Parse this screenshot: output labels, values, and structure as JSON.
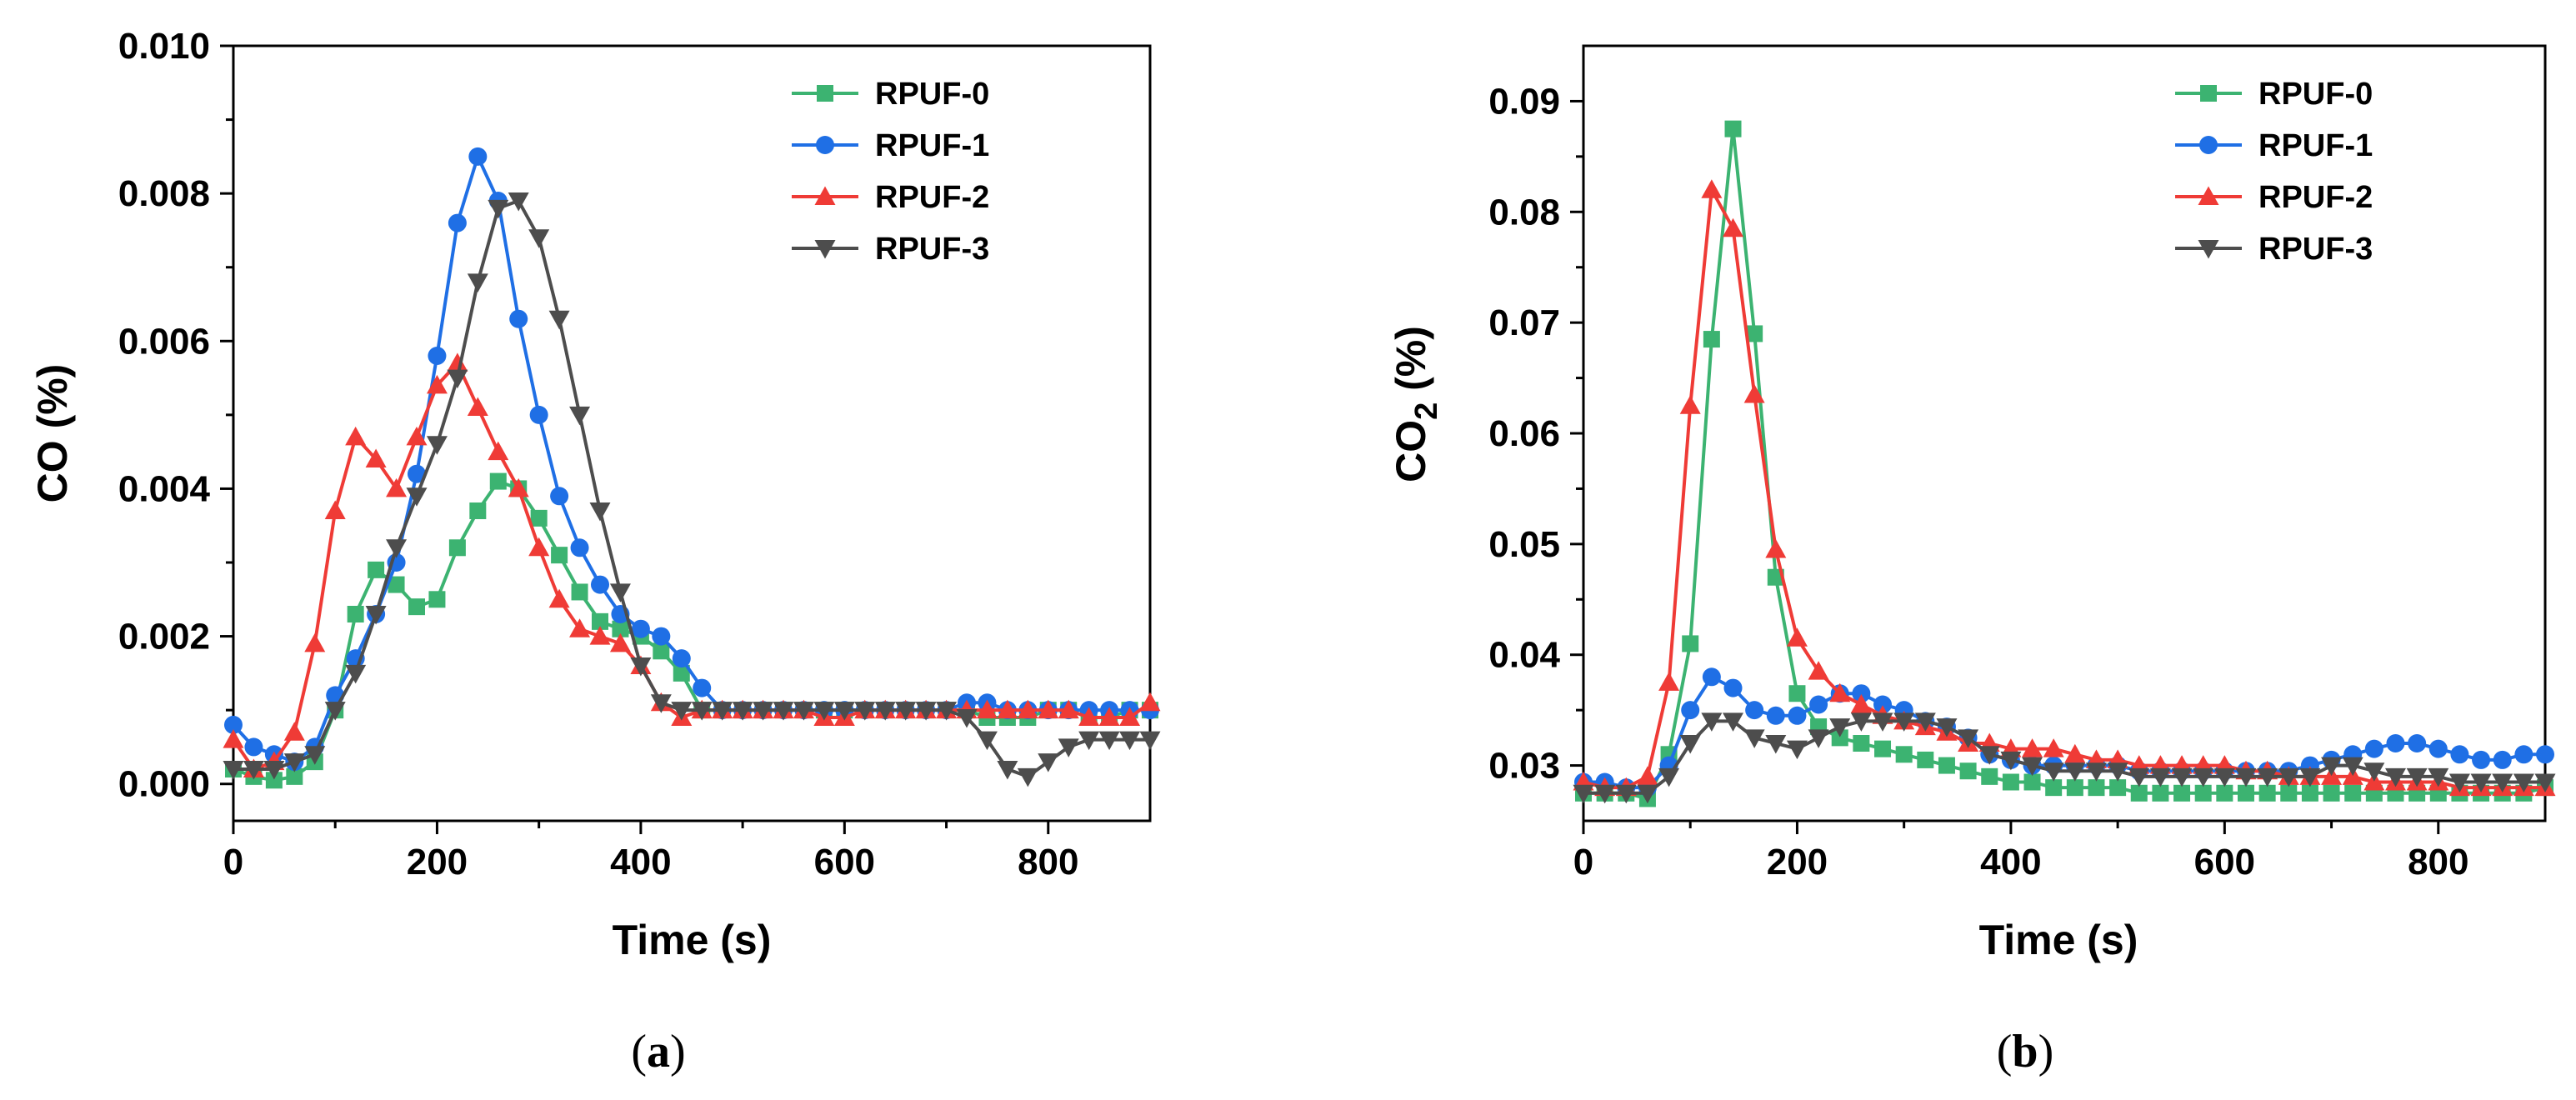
{
  "chart_data": [
    {
      "type": "line",
      "panel_label": "a",
      "xlabel": "Time (s)",
      "ylabel": "CO (%)",
      "ylabel_sub": "",
      "ylabel_tail": "",
      "xlim": [
        0,
        900
      ],
      "ylim": [
        -0.0005,
        0.01
      ],
      "xticks": [
        0,
        200,
        400,
        600,
        800
      ],
      "yticks": [
        0.0,
        0.002,
        0.004,
        0.006,
        0.008,
        0.01
      ],
      "ytick_labels": [
        "0.000",
        "0.002",
        "0.004",
        "0.006",
        "0.008",
        "0.010"
      ],
      "xtick_labels": [
        "0",
        "200",
        "400",
        "600",
        "800"
      ],
      "legend_position": "top-right",
      "series": [
        {
          "name": "RPUF-0",
          "color": "#3cb371",
          "marker": "square",
          "x": [
            0,
            20,
            40,
            60,
            80,
            100,
            120,
            140,
            160,
            180,
            200,
            220,
            240,
            260,
            280,
            300,
            320,
            340,
            360,
            380,
            400,
            420,
            440,
            460,
            480,
            500,
            520,
            540,
            560,
            580,
            600,
            620,
            640,
            660,
            680,
            700,
            720,
            740,
            760,
            780,
            800,
            820,
            840,
            860,
            880,
            900
          ],
          "y": [
            0.0002,
            0.0001,
            5e-05,
            0.0001,
            0.0003,
            0.001,
            0.0023,
            0.0029,
            0.0027,
            0.0024,
            0.0025,
            0.0032,
            0.0037,
            0.0041,
            0.004,
            0.0036,
            0.0031,
            0.0026,
            0.0022,
            0.0021,
            0.002,
            0.0018,
            0.0015,
            0.001,
            0.001,
            0.001,
            0.001,
            0.001,
            0.001,
            0.001,
            0.001,
            0.001,
            0.001,
            0.001,
            0.001,
            0.001,
            0.001,
            0.0009,
            0.0009,
            0.0009,
            0.001,
            0.001,
            0.0009,
            0.0009,
            0.001,
            0.001
          ]
        },
        {
          "name": "RPUF-1",
          "color": "#1f6fe5",
          "marker": "circle",
          "x": [
            0,
            20,
            40,
            60,
            80,
            100,
            120,
            140,
            160,
            180,
            200,
            220,
            240,
            260,
            280,
            300,
            320,
            340,
            360,
            380,
            400,
            420,
            440,
            460,
            480,
            500,
            520,
            540,
            560,
            580,
            600,
            620,
            640,
            660,
            680,
            700,
            720,
            740,
            760,
            780,
            800,
            820,
            840,
            860,
            880,
            900
          ],
          "y": [
            0.0008,
            0.0005,
            0.0004,
            0.0003,
            0.0005,
            0.0012,
            0.0017,
            0.0023,
            0.003,
            0.0042,
            0.0058,
            0.0076,
            0.0085,
            0.0079,
            0.0063,
            0.005,
            0.0039,
            0.0032,
            0.0027,
            0.0023,
            0.0021,
            0.002,
            0.0017,
            0.0013,
            0.001,
            0.001,
            0.001,
            0.001,
            0.001,
            0.001,
            0.001,
            0.001,
            0.001,
            0.001,
            0.001,
            0.001,
            0.0011,
            0.0011,
            0.001,
            0.001,
            0.001,
            0.001,
            0.001,
            0.001,
            0.001,
            0.001
          ]
        },
        {
          "name": "RPUF-2",
          "color": "#ef3b36",
          "marker": "triangle-up",
          "x": [
            0,
            20,
            40,
            60,
            80,
            100,
            120,
            140,
            160,
            180,
            200,
            220,
            240,
            260,
            280,
            300,
            320,
            340,
            360,
            380,
            400,
            420,
            440,
            460,
            480,
            500,
            520,
            540,
            560,
            580,
            600,
            620,
            640,
            660,
            680,
            700,
            720,
            740,
            760,
            780,
            800,
            820,
            840,
            860,
            880,
            900
          ],
          "y": [
            0.0006,
            0.0002,
            0.0003,
            0.0007,
            0.0019,
            0.0037,
            0.0047,
            0.0044,
            0.004,
            0.0047,
            0.0054,
            0.0057,
            0.0051,
            0.0045,
            0.004,
            0.0032,
            0.0025,
            0.0021,
            0.002,
            0.0019,
            0.0016,
            0.0011,
            0.0009,
            0.001,
            0.001,
            0.001,
            0.001,
            0.001,
            0.001,
            0.0009,
            0.0009,
            0.001,
            0.001,
            0.001,
            0.001,
            0.001,
            0.001,
            0.001,
            0.001,
            0.001,
            0.001,
            0.001,
            0.0009,
            0.0009,
            0.0009,
            0.0011
          ]
        },
        {
          "name": "RPUF-3",
          "color": "#4d4d4d",
          "marker": "triangle-down",
          "x": [
            0,
            20,
            40,
            60,
            80,
            100,
            120,
            140,
            160,
            180,
            200,
            220,
            240,
            260,
            280,
            300,
            320,
            340,
            360,
            380,
            400,
            420,
            440,
            460,
            480,
            500,
            520,
            540,
            560,
            580,
            600,
            620,
            640,
            660,
            680,
            700,
            720,
            740,
            760,
            780,
            800,
            820,
            840,
            860,
            880,
            900
          ],
          "y": [
            0.0002,
            0.0002,
            0.0002,
            0.0003,
            0.0004,
            0.001,
            0.0015,
            0.0023,
            0.0032,
            0.0039,
            0.0046,
            0.0055,
            0.0068,
            0.0078,
            0.0079,
            0.0074,
            0.0063,
            0.005,
            0.0037,
            0.0026,
            0.0016,
            0.0011,
            0.001,
            0.001,
            0.001,
            0.001,
            0.001,
            0.001,
            0.001,
            0.001,
            0.001,
            0.001,
            0.001,
            0.001,
            0.001,
            0.001,
            0.0009,
            0.0006,
            0.0002,
            0.0001,
            0.0003,
            0.0005,
            0.0006,
            0.0006,
            0.0006,
            0.0006
          ]
        }
      ]
    },
    {
      "type": "line",
      "panel_label": "b",
      "xlabel": "Time (s)",
      "ylabel": "CO",
      "ylabel_sub": "2",
      "ylabel_tail": " (%)",
      "xlim": [
        0,
        900
      ],
      "ylim": [
        0.025,
        0.095
      ],
      "xticks": [
        0,
        200,
        400,
        600,
        800
      ],
      "yticks": [
        0.03,
        0.04,
        0.05,
        0.06,
        0.07,
        0.08,
        0.09
      ],
      "ytick_labels": [
        "0.03",
        "0.04",
        "0.05",
        "0.06",
        "0.07",
        "0.08",
        "0.09"
      ],
      "xtick_labels": [
        "0",
        "200",
        "400",
        "600",
        "800"
      ],
      "legend_position": "top-right",
      "series": [
        {
          "name": "RPUF-0",
          "color": "#3cb371",
          "marker": "square",
          "x": [
            0,
            20,
            40,
            60,
            80,
            100,
            120,
            140,
            160,
            180,
            200,
            220,
            240,
            260,
            280,
            300,
            320,
            340,
            360,
            380,
            400,
            420,
            440,
            460,
            480,
            500,
            520,
            540,
            560,
            580,
            600,
            620,
            640,
            660,
            680,
            700,
            720,
            740,
            760,
            780,
            800,
            820,
            840,
            860,
            880,
            900
          ],
          "y": [
            0.0275,
            0.0275,
            0.0275,
            0.027,
            0.031,
            0.041,
            0.0685,
            0.0875,
            0.069,
            0.047,
            0.0365,
            0.0335,
            0.0325,
            0.032,
            0.0315,
            0.031,
            0.0305,
            0.03,
            0.0295,
            0.029,
            0.0285,
            0.0285,
            0.028,
            0.028,
            0.028,
            0.028,
            0.0275,
            0.0275,
            0.0275,
            0.0275,
            0.0275,
            0.0275,
            0.0275,
            0.0275,
            0.0275,
            0.0275,
            0.0275,
            0.0275,
            0.0275,
            0.0275,
            0.0275,
            0.0275,
            0.0275,
            0.0275,
            0.0275,
            0.028
          ]
        },
        {
          "name": "RPUF-1",
          "color": "#1f6fe5",
          "marker": "circle",
          "x": [
            0,
            20,
            40,
            60,
            80,
            100,
            120,
            140,
            160,
            180,
            200,
            220,
            240,
            260,
            280,
            300,
            320,
            340,
            360,
            380,
            400,
            420,
            440,
            460,
            480,
            500,
            520,
            540,
            560,
            580,
            600,
            620,
            640,
            660,
            680,
            700,
            720,
            740,
            760,
            780,
            800,
            820,
            840,
            860,
            880,
            900
          ],
          "y": [
            0.0285,
            0.0285,
            0.028,
            0.028,
            0.03,
            0.035,
            0.038,
            0.037,
            0.035,
            0.0345,
            0.0345,
            0.0355,
            0.0365,
            0.0365,
            0.0355,
            0.035,
            0.034,
            0.0335,
            0.0325,
            0.031,
            0.0305,
            0.03,
            0.03,
            0.03,
            0.03,
            0.03,
            0.0295,
            0.0295,
            0.0295,
            0.0295,
            0.0295,
            0.0295,
            0.0295,
            0.0295,
            0.03,
            0.0305,
            0.031,
            0.0315,
            0.032,
            0.032,
            0.0315,
            0.031,
            0.0305,
            0.0305,
            0.031,
            0.031
          ]
        },
        {
          "name": "RPUF-2",
          "color": "#ef3b36",
          "marker": "triangle-up",
          "x": [
            0,
            20,
            40,
            60,
            80,
            100,
            120,
            140,
            160,
            180,
            200,
            220,
            240,
            260,
            280,
            300,
            320,
            340,
            360,
            380,
            400,
            420,
            440,
            460,
            480,
            500,
            520,
            540,
            560,
            580,
            600,
            620,
            640,
            660,
            680,
            700,
            720,
            740,
            760,
            780,
            800,
            820,
            840,
            860,
            880,
            900
          ],
          "y": [
            0.0285,
            0.028,
            0.028,
            0.029,
            0.0375,
            0.0625,
            0.082,
            0.0785,
            0.0635,
            0.0495,
            0.0415,
            0.0385,
            0.0365,
            0.0355,
            0.0345,
            0.034,
            0.0335,
            0.033,
            0.032,
            0.032,
            0.0315,
            0.0315,
            0.0315,
            0.031,
            0.0305,
            0.0305,
            0.03,
            0.03,
            0.03,
            0.03,
            0.03,
            0.0295,
            0.0295,
            0.029,
            0.029,
            0.029,
            0.029,
            0.0285,
            0.0285,
            0.0285,
            0.0285,
            0.028,
            0.028,
            0.028,
            0.028,
            0.028
          ]
        },
        {
          "name": "RPUF-3",
          "color": "#4d4d4d",
          "marker": "triangle-down",
          "x": [
            0,
            20,
            40,
            60,
            80,
            100,
            120,
            140,
            160,
            180,
            200,
            220,
            240,
            260,
            280,
            300,
            320,
            340,
            360,
            380,
            400,
            420,
            440,
            460,
            480,
            500,
            520,
            540,
            560,
            580,
            600,
            620,
            640,
            660,
            680,
            700,
            720,
            740,
            760,
            780,
            800,
            820,
            840,
            860,
            880,
            900
          ],
          "y": [
            0.0275,
            0.0275,
            0.0275,
            0.0275,
            0.029,
            0.032,
            0.034,
            0.034,
            0.0325,
            0.032,
            0.0315,
            0.0325,
            0.0335,
            0.034,
            0.034,
            0.034,
            0.034,
            0.0335,
            0.0325,
            0.031,
            0.0305,
            0.03,
            0.0295,
            0.0295,
            0.0295,
            0.0295,
            0.029,
            0.029,
            0.029,
            0.029,
            0.029,
            0.029,
            0.029,
            0.029,
            0.029,
            0.03,
            0.03,
            0.0295,
            0.029,
            0.029,
            0.029,
            0.0285,
            0.0285,
            0.0285,
            0.0285,
            0.0285
          ]
        }
      ]
    }
  ]
}
